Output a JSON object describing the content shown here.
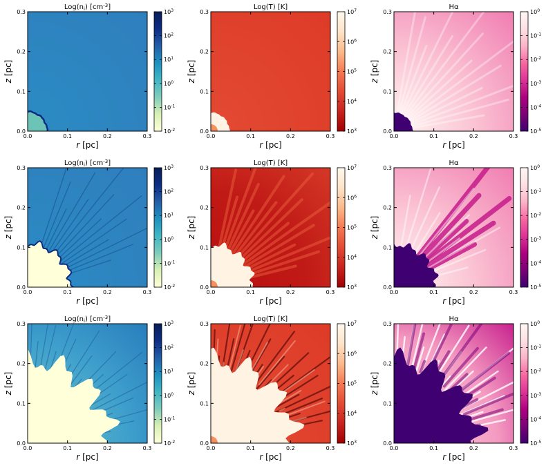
{
  "figure": {
    "description_free": true,
    "rows": 3,
    "cols": 3
  },
  "colormaps": {
    "density": [
      "#ffffd9",
      "#d8f0b4",
      "#7fcdbb",
      "#41b6c4",
      "#1d91c0",
      "#225ea8",
      "#0c2c84",
      "#081d58"
    ],
    "temperature": [
      "#a10000",
      "#c8241e",
      "#e34a33",
      "#f47a52",
      "#fcb98a",
      "#fde3c8",
      "#fff8ec"
    ],
    "halpha": [
      "#3f0071",
      "#7a0177",
      "#ae017e",
      "#dd3497",
      "#f768a1",
      "#fbb4c9",
      "#fde0e4",
      "#fff7f3"
    ]
  },
  "chart_data": [
    {
      "type": "heatmap",
      "row": 1,
      "col": 1,
      "quantity": "density",
      "title_main": "Log(n",
      "title_sub": "i",
      "title_tail": ") [cm",
      "title_sup": "-3",
      "title_end": "]",
      "xlabel_i": "r",
      "xlabel_u": "[pc]",
      "ylabel_i": "z",
      "ylabel_u": "[pc]",
      "xlim": [
        0,
        0.3
      ],
      "ylim": [
        0,
        0.3
      ],
      "xticks": [
        "0.0",
        "0.1",
        "0.2",
        "0.3"
      ],
      "yticks": [
        "0.0",
        "0.1",
        "0.2",
        "0.3"
      ],
      "cbar_base": "10",
      "cbar_exps": [
        "-2",
        "-1",
        "0",
        "1",
        "2",
        "3"
      ],
      "cbar_range": [
        -2,
        3
      ],
      "stage": 1
    },
    {
      "type": "heatmap",
      "row": 1,
      "col": 2,
      "quantity": "temperature",
      "title_main": "Log(T) [K]",
      "xlabel_i": "r",
      "xlabel_u": "[pc]",
      "ylabel_i": "z",
      "ylabel_u": "[pc]",
      "xlim": [
        0,
        0.3
      ],
      "ylim": [
        0,
        0.3
      ],
      "xticks": [
        "0.0",
        "0.1",
        "0.2",
        "0.3"
      ],
      "yticks": [
        "0.0",
        "0.1",
        "0.2",
        "0.3"
      ],
      "cbar_base": "10",
      "cbar_exps": [
        "3",
        "4",
        "5",
        "6",
        "7"
      ],
      "cbar_range": [
        3,
        7
      ],
      "stage": 1
    },
    {
      "type": "heatmap",
      "row": 1,
      "col": 3,
      "quantity": "halpha",
      "title_main": "H",
      "title_greek": "α",
      "xlabel_i": "r",
      "xlabel_u": "[pc]",
      "ylabel_i": "z",
      "ylabel_u": "[pc]",
      "xlim": [
        0,
        0.3
      ],
      "ylim": [
        0,
        0.3
      ],
      "xticks": [
        "0.0",
        "0.1",
        "0.2",
        "0.3"
      ],
      "yticks": [
        "0.0",
        "0.1",
        "0.2",
        "0.3"
      ],
      "cbar_base": "10",
      "cbar_exps": [
        "-5",
        "-4",
        "-3",
        "-2",
        "-1",
        "0"
      ],
      "cbar_range": [
        -5,
        0
      ],
      "stage": 1
    },
    {
      "type": "heatmap",
      "row": 2,
      "col": 1,
      "quantity": "density",
      "title_main": "Log(n",
      "title_sub": "i",
      "title_tail": ") [cm",
      "title_sup": "-3",
      "title_end": "]",
      "xlabel_i": "r",
      "xlabel_u": "[pc]",
      "ylabel_i": "z",
      "ylabel_u": "[pc]",
      "xlim": [
        0,
        0.3
      ],
      "ylim": [
        0,
        0.3
      ],
      "xticks": [
        "0.0",
        "0.1",
        "0.2",
        "0.3"
      ],
      "yticks": [
        "0.0",
        "0.1",
        "0.2",
        "0.3"
      ],
      "cbar_base": "10",
      "cbar_exps": [
        "-2",
        "-1",
        "0",
        "1",
        "2",
        "3"
      ],
      "cbar_range": [
        -2,
        3
      ],
      "stage": 2
    },
    {
      "type": "heatmap",
      "row": 2,
      "col": 2,
      "quantity": "temperature",
      "title_main": "Log(T) [K]",
      "xlabel_i": "r",
      "xlabel_u": "[pc]",
      "ylabel_i": "z",
      "ylabel_u": "[pc]",
      "xlim": [
        0,
        0.3
      ],
      "ylim": [
        0,
        0.3
      ],
      "xticks": [
        "0.0",
        "0.1",
        "0.2",
        "0.3"
      ],
      "yticks": [
        "0.0",
        "0.1",
        "0.2",
        "0.3"
      ],
      "cbar_base": "10",
      "cbar_exps": [
        "3",
        "4",
        "5",
        "6",
        "7"
      ],
      "cbar_range": [
        3,
        7
      ],
      "stage": 2
    },
    {
      "type": "heatmap",
      "row": 2,
      "col": 3,
      "quantity": "halpha",
      "title_main": "H",
      "title_greek": "α",
      "xlabel_i": "r",
      "xlabel_u": "[pc]",
      "ylabel_i": "z",
      "ylabel_u": "[pc]",
      "xlim": [
        0,
        0.3
      ],
      "ylim": [
        0,
        0.3
      ],
      "xticks": [
        "0.0",
        "0.1",
        "0.2",
        "0.3"
      ],
      "yticks": [
        "0.0",
        "0.1",
        "0.2",
        "0.3"
      ],
      "cbar_base": "10",
      "cbar_exps": [
        "-5",
        "-4",
        "-3",
        "-2",
        "-1",
        "0"
      ],
      "cbar_range": [
        -5,
        0
      ],
      "stage": 2
    },
    {
      "type": "heatmap",
      "row": 3,
      "col": 1,
      "quantity": "density",
      "title_main": "Log(n",
      "title_sub": "i",
      "title_tail": ") [cm",
      "title_sup": "-3",
      "title_end": "]",
      "xlabel_i": "r",
      "xlabel_u": "[pc]",
      "ylabel_i": "z",
      "ylabel_u": "[pc]",
      "xlim": [
        0,
        0.3
      ],
      "ylim": [
        0,
        0.3
      ],
      "xticks": [
        "0.0",
        "0.1",
        "0.2",
        "0.3"
      ],
      "yticks": [
        "0.0",
        "0.1",
        "0.2",
        "0.3"
      ],
      "cbar_base": "10",
      "cbar_exps": [
        "-2",
        "-1",
        "0",
        "1",
        "2",
        "3"
      ],
      "cbar_range": [
        -2,
        3
      ],
      "stage": 3
    },
    {
      "type": "heatmap",
      "row": 3,
      "col": 2,
      "quantity": "temperature",
      "title_main": "Log(T) [K]",
      "xlabel_i": "r",
      "xlabel_u": "[pc]",
      "ylabel_i": "z",
      "ylabel_u": "[pc]",
      "xlim": [
        0,
        0.3
      ],
      "ylim": [
        0,
        0.3
      ],
      "xticks": [
        "0.0",
        "0.1",
        "0.2",
        "0.3"
      ],
      "yticks": [
        "0.0",
        "0.1",
        "0.2",
        "0.3"
      ],
      "cbar_base": "10",
      "cbar_exps": [
        "3",
        "4",
        "5",
        "6",
        "7"
      ],
      "cbar_range": [
        3,
        7
      ],
      "stage": 3
    },
    {
      "type": "heatmap",
      "row": 3,
      "col": 3,
      "quantity": "halpha",
      "title_main": "H",
      "title_greek": "α",
      "xlabel_i": "r",
      "xlabel_u": "[pc]",
      "ylabel_i": "z",
      "ylabel_u": "[pc]",
      "xlim": [
        0,
        0.3
      ],
      "ylim": [
        0,
        0.3
      ],
      "xticks": [
        "0.0",
        "0.1",
        "0.2",
        "0.3"
      ],
      "yticks": [
        "0.0",
        "0.1",
        "0.2",
        "0.3"
      ],
      "cbar_base": "10",
      "cbar_exps": [
        "-5",
        "-4",
        "-3",
        "-2",
        "-1",
        "0"
      ],
      "cbar_range": [
        -5,
        0
      ],
      "stage": 3
    }
  ]
}
